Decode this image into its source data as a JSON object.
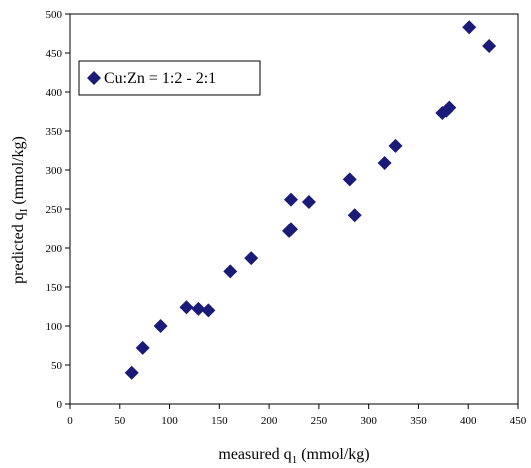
{
  "chart_data": {
    "type": "scatter",
    "title": "",
    "xlabel": "measured q",
    "xlabel_sub": "1",
    "xlabel_unit": " (mmol/kg)",
    "ylabel": "predicted q",
    "ylabel_sub": "I",
    "ylabel_unit": " (mmol/kg)",
    "xlim": [
      0,
      450
    ],
    "ylim": [
      0,
      500
    ],
    "xticks": [
      0,
      50,
      100,
      150,
      200,
      250,
      300,
      350,
      400,
      450
    ],
    "yticks": [
      0,
      50,
      100,
      150,
      200,
      250,
      300,
      350,
      400,
      450,
      500
    ],
    "grid": false,
    "legend_position": "top-left",
    "series": [
      {
        "name": "Cu:Zn = 1:2 - 2:1",
        "color": "#1a1a78",
        "marker": "diamond",
        "points": [
          {
            "x": 62,
            "y": 40
          },
          {
            "x": 73,
            "y": 72
          },
          {
            "x": 91,
            "y": 100
          },
          {
            "x": 117,
            "y": 124
          },
          {
            "x": 129,
            "y": 122
          },
          {
            "x": 139,
            "y": 120
          },
          {
            "x": 161,
            "y": 170
          },
          {
            "x": 182,
            "y": 187
          },
          {
            "x": 220,
            "y": 222
          },
          {
            "x": 222,
            "y": 224
          },
          {
            "x": 222,
            "y": 262
          },
          {
            "x": 240,
            "y": 259
          },
          {
            "x": 281,
            "y": 288
          },
          {
            "x": 286,
            "y": 242
          },
          {
            "x": 316,
            "y": 309
          },
          {
            "x": 327,
            "y": 331
          },
          {
            "x": 374,
            "y": 373
          },
          {
            "x": 378,
            "y": 376
          },
          {
            "x": 381,
            "y": 380
          },
          {
            "x": 401,
            "y": 483
          },
          {
            "x": 421,
            "y": 459
          }
        ]
      }
    ]
  }
}
